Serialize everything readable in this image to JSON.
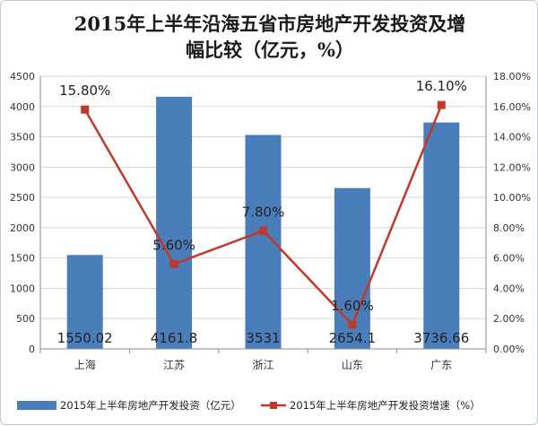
{
  "chart_data": {
    "type": "bar+line",
    "title_lines": [
      "2015年上半年沿海五省市房地产开发投资及增",
      "幅比较（亿元，%）"
    ],
    "categories": [
      "上海",
      "江苏",
      "浙江",
      "山东",
      "广东"
    ],
    "series": [
      {
        "name": "2015年上半年房地产开发投资（亿元）",
        "type": "bar",
        "axis": "left",
        "color": "#4a7ebb",
        "values": [
          1550.02,
          4161.8,
          3531,
          2654.1,
          3736.66
        ],
        "labels": [
          "1550.02",
          "4161.8",
          "3531",
          "2654.1",
          "3736.66"
        ]
      },
      {
        "name": "2015年上半年房地产开发投资增速（%）",
        "type": "line",
        "axis": "right",
        "color": "#c0392b",
        "values": [
          15.8,
          5.6,
          7.8,
          1.6,
          16.1
        ],
        "labels": [
          "15.80%",
          "5.60%",
          "7.80%",
          "1.60%",
          "16.10%"
        ]
      }
    ],
    "y_left": {
      "range": [
        0,
        4500
      ],
      "ticks": [
        "0",
        "500",
        "1000",
        "1500",
        "2000",
        "2500",
        "3000",
        "3500",
        "4000",
        "4500"
      ]
    },
    "y_right": {
      "range": [
        0,
        18
      ],
      "ticks": [
        "0.00%",
        "2.00%",
        "4.00%",
        "6.00%",
        "8.00%",
        "10.00%",
        "12.00%",
        "14.00%",
        "16.00%",
        "18.00%"
      ]
    },
    "grid": true,
    "legend_position": "bottom"
  }
}
